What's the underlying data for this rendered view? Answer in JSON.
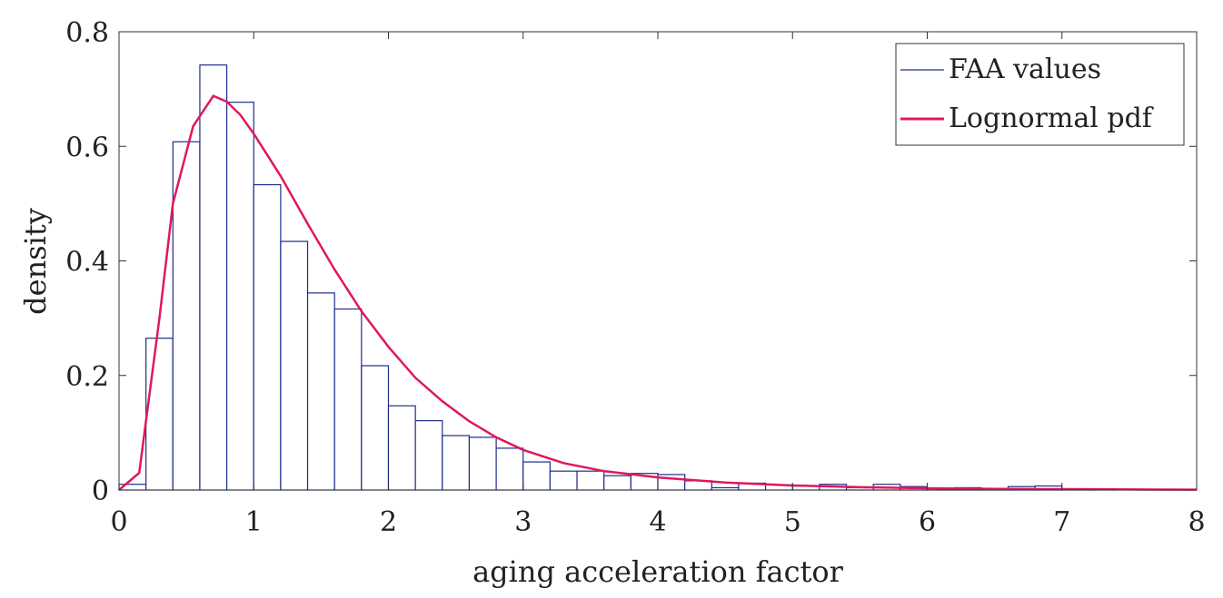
{
  "colors": {
    "histogram": "#1f2d8c",
    "pdf": "#e0185c",
    "axes": "#333333"
  },
  "chart_data": {
    "type": "bar",
    "title": "",
    "xlabel": "aging acceleration factor",
    "ylabel": "density",
    "xlim": [
      0,
      8
    ],
    "ylim": [
      0,
      0.8
    ],
    "xticks": [
      0,
      1,
      2,
      3,
      4,
      5,
      6,
      7,
      8
    ],
    "xtick_labels": [
      "0",
      "1",
      "2",
      "3",
      "4",
      "5",
      "6",
      "7",
      "8"
    ],
    "yticks": [
      0,
      0.2,
      0.4,
      0.6,
      0.8
    ],
    "ytick_labels": [
      "0",
      "0.2",
      "0.4",
      "0.6",
      "0.8"
    ],
    "legend": {
      "position": "top-right",
      "entries": [
        "FAA values",
        "Lognormal pdf"
      ]
    },
    "series": [
      {
        "name": "FAA values",
        "kind": "histogram",
        "bin_edges": [
          0,
          0.2,
          0.4,
          0.6,
          0.8,
          1.0,
          1.2,
          1.4,
          1.6,
          1.8,
          2.0,
          2.2,
          2.4,
          2.6,
          2.8,
          3.0,
          3.2,
          3.4,
          3.6,
          3.8,
          4.0,
          4.2,
          4.4,
          4.6,
          4.8,
          5.0,
          5.2,
          5.4,
          5.6,
          5.8,
          6.0,
          6.2,
          6.4,
          6.6,
          6.8,
          7.0,
          7.2,
          7.4
        ],
        "values": [
          0.01,
          0.265,
          0.608,
          0.742,
          0.677,
          0.533,
          0.434,
          0.344,
          0.316,
          0.217,
          0.147,
          0.121,
          0.095,
          0.092,
          0.073,
          0.049,
          0.033,
          0.033,
          0.025,
          0.029,
          0.027,
          0.016,
          0.004,
          0.012,
          0.009,
          0.007,
          0.01,
          0.004,
          0.01,
          0.006,
          0.003,
          0.004,
          0.002,
          0.006,
          0.007,
          0.002,
          0.002
        ]
      },
      {
        "name": "Lognormal pdf",
        "kind": "line",
        "x": [
          0,
          0.15,
          0.3,
          0.4,
          0.55,
          0.7,
          0.8,
          0.9,
          1.0,
          1.2,
          1.4,
          1.6,
          1.8,
          2.0,
          2.2,
          2.4,
          2.6,
          2.8,
          3.0,
          3.3,
          3.6,
          4.0,
          4.5,
          5.0,
          5.5,
          6.0,
          6.5,
          7.0,
          7.5,
          8.0
        ],
        "y": [
          0,
          0.03,
          0.3,
          0.5,
          0.635,
          0.688,
          0.678,
          0.655,
          0.622,
          0.548,
          0.465,
          0.385,
          0.312,
          0.25,
          0.196,
          0.155,
          0.12,
          0.092,
          0.07,
          0.047,
          0.033,
          0.022,
          0.013,
          0.008,
          0.005,
          0.003,
          0.002,
          0.0015,
          0.001,
          0.0005
        ]
      }
    ]
  }
}
